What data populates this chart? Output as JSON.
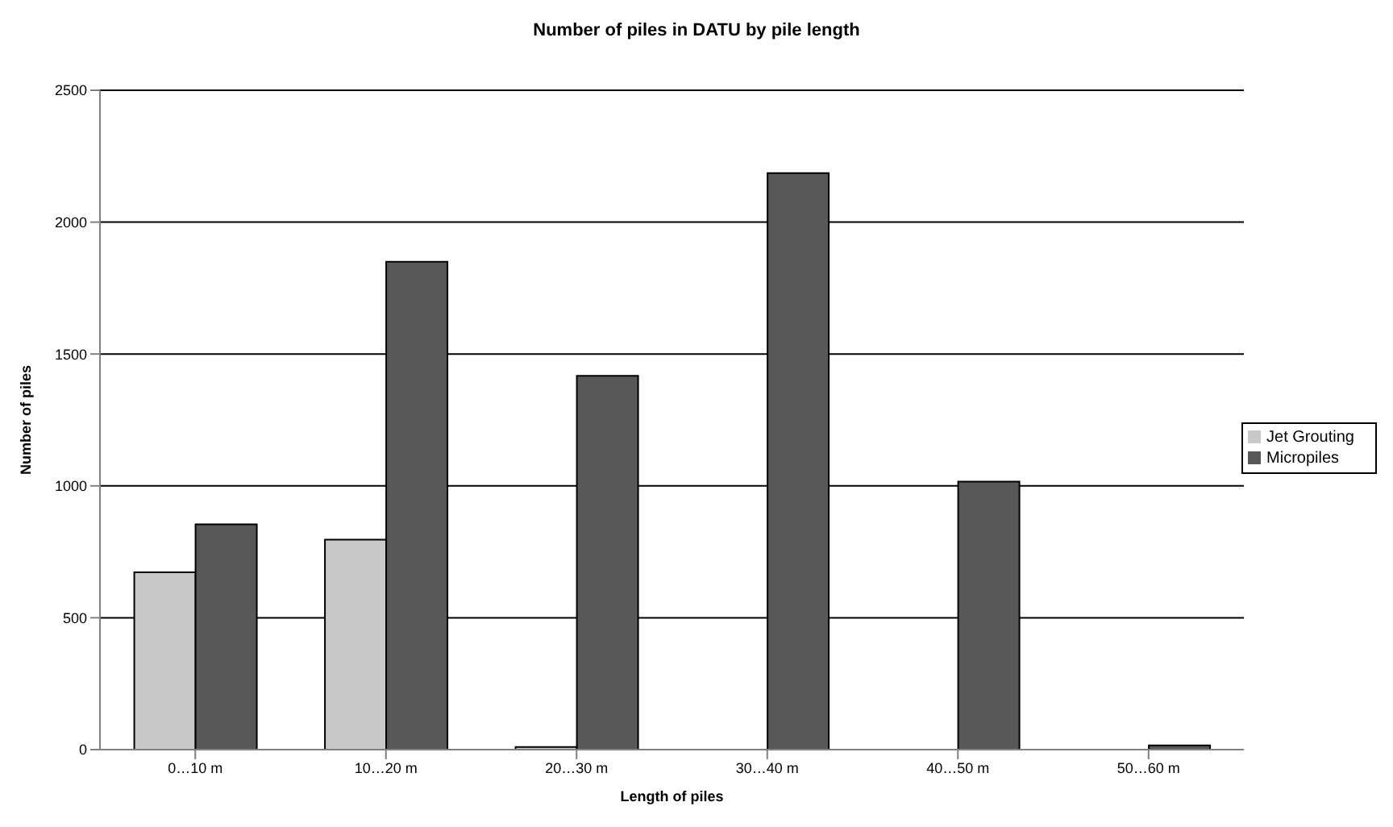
{
  "chart_data": {
    "type": "bar",
    "title": "Number of piles in DATU by pile length",
    "xlabel": "Length of piles",
    "ylabel": "Number of piles",
    "categories": [
      "0…10 m",
      "10…20 m",
      "20…30 m",
      "30…40 m",
      "40…50 m",
      "50…60 m"
    ],
    "series": [
      {
        "name": "Jet Grouting",
        "color": "#c8c9cb",
        "values": [
          672,
          796,
          10,
          0,
          0,
          0
        ]
      },
      {
        "name": "Micropiles",
        "color": "#57585a",
        "values": [
          854,
          1850,
          1417,
          2186,
          1016,
          16
        ]
      }
    ],
    "ylim": [
      0,
      2500
    ],
    "yticks": [
      0,
      500,
      1000,
      1500,
      2000,
      2500
    ],
    "grid": "y",
    "legend": "right"
  }
}
